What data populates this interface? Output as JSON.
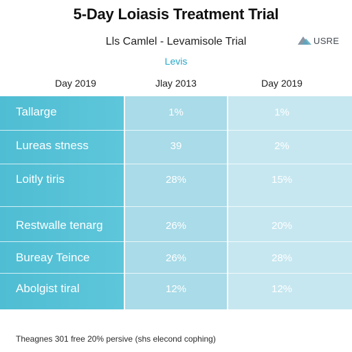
{
  "title": "5-Day Loiasis Treatment Trial",
  "subtitle": "Lls Camlel - Levamisole Trial",
  "logo": {
    "text": "USRE",
    "icon": "logo-triangle-icon"
  },
  "tag": "Levis",
  "columns": [
    "Day 2019",
    "Jlay 2013",
    "Day 2019"
  ],
  "rows": [
    {
      "label": "Tallarge",
      "a": "1%",
      "b": "1%"
    },
    {
      "label": "Lureas stness",
      "a": "39",
      "b": "2%"
    },
    {
      "label": "Loitly tiris",
      "a": "28%",
      "b": "15%"
    },
    {
      "label": "Restwalle tenarg",
      "a": "26%",
      "b": "20%"
    },
    {
      "label": "Bureay Teince",
      "a": "26%",
      "b": "28%"
    },
    {
      "label": "Abolgist tiral",
      "a": "12%",
      "b": "12%"
    }
  ],
  "footer": "Theagnes 301 free 20% persive (shs elecond cophing)",
  "colors": {
    "label_column": "#4fbdd3",
    "column_a": "#a9dbe8",
    "column_b": "#c6e7f0",
    "accent": "#27a8c8"
  }
}
